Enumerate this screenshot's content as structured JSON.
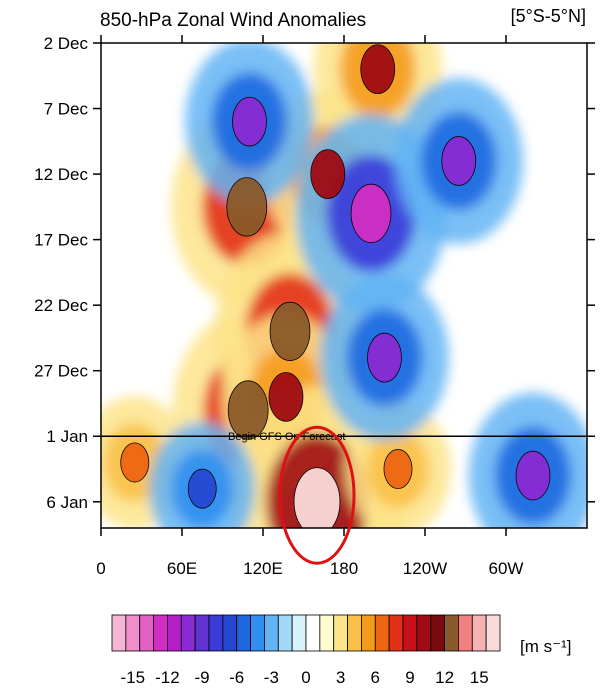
{
  "chart_data": {
    "type": "heatmap",
    "title": "850-hPa Zonal Wind Anomalies",
    "region_label": "[5°S-5°N]",
    "x_ticks": [
      "0",
      "60E",
      "120E",
      "180",
      "120W",
      "60W"
    ],
    "x_tick_values": [
      0,
      60,
      120,
      180,
      240,
      300
    ],
    "xlim": [
      0,
      360
    ],
    "y_ticks": [
      "2 Dec",
      "7 Dec",
      "12 Dec",
      "17 Dec",
      "22 Dec",
      "27 Dec",
      "1 Jan",
      "6 Jan"
    ],
    "y_tick_values": [
      0,
      5,
      10,
      15,
      20,
      25,
      30,
      35
    ],
    "ylim": [
      0,
      37
    ],
    "annotation": "Begin GFS Op Forecast",
    "annotation_y": 30,
    "colorbar": {
      "labels": [
        "-15",
        "-12",
        "-9",
        "-6",
        "-3",
        "0",
        "3",
        "6",
        "9",
        "12",
        "15"
      ],
      "unit": "[m s⁻¹]",
      "colors": [
        "#f4b6d6",
        "#ee8fcb",
        "#e560c5",
        "#d12fc2",
        "#b41ec8",
        "#8a2ad2",
        "#5e33d0",
        "#3a3ad9",
        "#2548d0",
        "#1c68e0",
        "#2f8ff0",
        "#63b4f4",
        "#a3d9f8",
        "#d9f1fb",
        "#ffffff",
        "#fffbd0",
        "#fde48a",
        "#f9c148",
        "#f59b1c",
        "#ef6612",
        "#e33117",
        "#c81016",
        "#a00b14",
        "#7a0a0c",
        "#8b5a2b",
        "#f08080",
        "#f7b3b3",
        "#fadada"
      ]
    },
    "anomaly_features": [
      {
        "lon": 25,
        "day": 32,
        "value": 6
      },
      {
        "lon": 108,
        "day": 12.5,
        "value": 12
      },
      {
        "lon": 109,
        "day": 28,
        "value": 12
      },
      {
        "lon": 140,
        "day": 22,
        "value": 12
      },
      {
        "lon": 137,
        "day": 27,
        "value": 9
      },
      {
        "lon": 168,
        "day": 10,
        "value": 9
      },
      {
        "lon": 160,
        "day": 35,
        "value": 15
      },
      {
        "lon": 205,
        "day": 2,
        "value": 9
      },
      {
        "lon": 220,
        "day": 32.5,
        "value": 6
      },
      {
        "lon": 110,
        "day": 6,
        "value": -9
      },
      {
        "lon": 200,
        "day": 13,
        "value": -12
      },
      {
        "lon": 210,
        "day": 24,
        "value": -9
      },
      {
        "lon": 265,
        "day": 9,
        "value": -9
      },
      {
        "lon": 320,
        "day": 33,
        "value": -9
      },
      {
        "lon": 75,
        "day": 34,
        "value": -6
      }
    ],
    "highlight": {
      "shape": "ellipse",
      "lon": 160,
      "day": 34.5,
      "color": "#dd1111"
    }
  }
}
